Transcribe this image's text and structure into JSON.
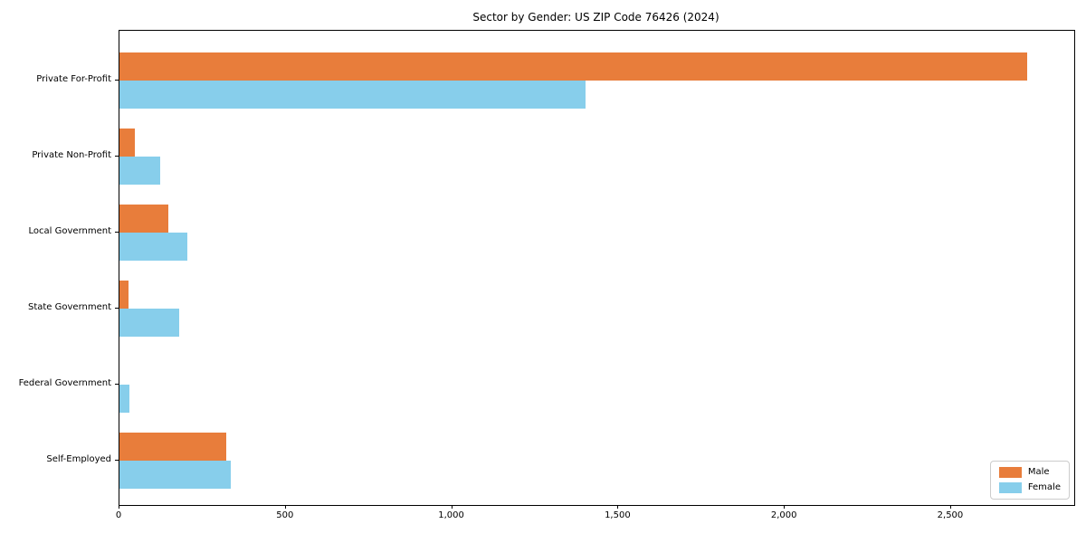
{
  "chart_data": {
    "type": "bar",
    "orientation": "horizontal",
    "title": "Sector by Gender: US ZIP Code 76426 (2024)",
    "categories": [
      "Private For-Profit",
      "Private Non-Profit",
      "Local Government",
      "State Government",
      "Federal Government",
      "Self-Employed"
    ],
    "series": [
      {
        "name": "Male",
        "color": "#e87d3b",
        "values": [
          2728,
          47,
          148,
          28,
          0,
          321
        ]
      },
      {
        "name": "Female",
        "color": "#87ceeb",
        "values": [
          1400,
          122,
          204,
          179,
          30,
          335
        ]
      }
    ],
    "xlabel": "",
    "ylabel": "",
    "xlim": [
      0,
      2870
    ],
    "xtick_values": [
      0,
      500,
      1000,
      1500,
      2000,
      2500
    ],
    "xtick_labels": [
      "0",
      "500",
      "1,000",
      "1,500",
      "2,000",
      "2,500"
    ],
    "grid": false,
    "legend": {
      "position": "lower right",
      "labels": [
        "Male",
        "Female"
      ]
    }
  }
}
